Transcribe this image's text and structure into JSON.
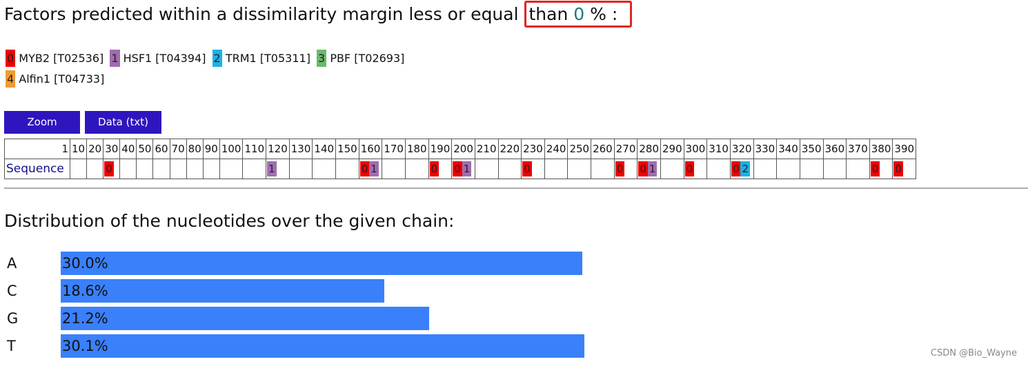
{
  "heading": {
    "prefix": "Factors predicted within a dissimilarity margin less or equal",
    "than": "than",
    "margin": 0,
    "suffix": "% :"
  },
  "legend": [
    {
      "index": 0,
      "name": "MYB2 [T02536]",
      "color": "#ee0000"
    },
    {
      "index": 1,
      "name": "HSF1 [T04394]",
      "color": "#a26cb0"
    },
    {
      "index": 2,
      "name": "TRM1 [T05311]",
      "color": "#1ab2e6"
    },
    {
      "index": 3,
      "name": "PBF [T02693]",
      "color": "#68bb68"
    },
    {
      "index": 4,
      "name": "Alfin1 [T04733]",
      "color": "#f29b30"
    }
  ],
  "buttons": [
    "Zoom",
    "Data (txt)"
  ],
  "table": {
    "positions": [
      1,
      10,
      20,
      30,
      40,
      50,
      60,
      70,
      80,
      90,
      100,
      110,
      120,
      130,
      140,
      150,
      160,
      170,
      180,
      190,
      200,
      210,
      220,
      230,
      240,
      250,
      260,
      270,
      280,
      290,
      300,
      310,
      320,
      330,
      340,
      350,
      360,
      370,
      380,
      390
    ],
    "row_label": "Sequence",
    "cells": [
      [],
      [],
      [
        0
      ],
      [],
      [],
      [],
      [],
      [],
      [],
      [],
      [],
      [
        1
      ],
      [],
      [],
      [],
      [
        0,
        1
      ],
      [],
      [],
      [
        0
      ],
      [
        0,
        1
      ],
      [],
      [],
      [
        0
      ],
      [],
      [],
      [],
      [
        0
      ],
      [
        0,
        1
      ],
      [],
      [
        0
      ],
      [],
      [
        0,
        2
      ],
      [],
      [],
      [],
      [],
      [],
      [
        0
      ],
      [
        0
      ]
    ]
  },
  "distribution": {
    "title": "Distribution of the nucleotides over the given chain:",
    "bases": [
      "A",
      "C",
      "G",
      "T"
    ],
    "values": [
      30.0,
      18.6,
      21.2,
      30.1
    ],
    "value_labels": [
      "30.0%",
      "18.6%",
      "21.2%",
      "30.1%"
    ],
    "color": "#3a80fb"
  },
  "watermark": "CSDN @Bio_Wayne"
}
